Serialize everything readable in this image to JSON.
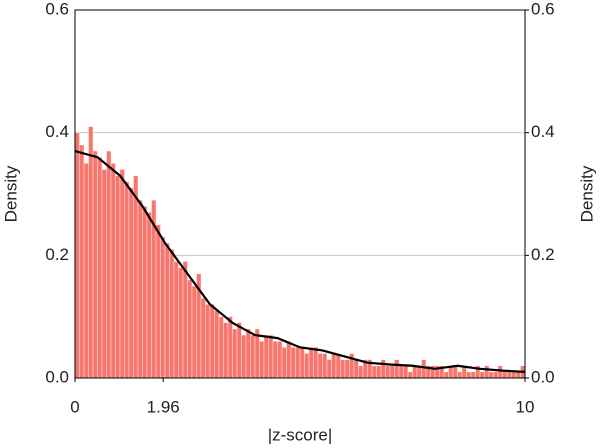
{
  "chart_data": {
    "type": "histogram",
    "x_label": "|z-score|",
    "y_label": "Density",
    "y2_label": "Density",
    "bins": [
      0,
      0.1,
      0.2,
      0.3,
      0.4,
      0.5,
      0.6,
      0.7,
      0.8,
      0.9,
      1,
      1.1,
      1.2,
      1.3,
      1.4,
      1.5,
      1.6,
      1.7,
      1.8,
      1.9,
      2,
      2.1,
      2.2,
      2.3,
      2.4,
      2.5,
      2.6,
      2.7,
      2.8,
      2.9,
      3,
      3.1,
      3.2,
      3.3,
      3.4,
      3.5,
      3.6,
      3.7,
      3.8,
      3.9,
      4,
      4.1,
      4.2,
      4.3,
      4.4,
      4.5,
      4.6,
      4.7,
      4.8,
      4.9,
      5,
      5.1,
      5.2,
      5.3,
      5.4,
      5.5,
      5.6,
      5.7,
      5.8,
      5.9,
      6,
      6.1,
      6.2,
      6.3,
      6.4,
      6.5,
      6.6,
      6.7,
      6.8,
      6.9,
      7,
      7.1,
      7.2,
      7.3,
      7.4,
      7.5,
      7.6,
      7.7,
      7.8,
      7.9,
      8,
      8.1,
      8.2,
      8.3,
      8.4,
      8.5,
      8.6,
      8.7,
      8.8,
      8.9,
      9,
      9.1,
      9.2,
      9.3,
      9.4,
      9.5,
      9.6,
      9.7,
      9.8,
      9.9,
      10
    ],
    "counts": [
      0.4,
      0.38,
      0.35,
      0.41,
      0.37,
      0.36,
      0.34,
      0.37,
      0.35,
      0.33,
      0.34,
      0.32,
      0.31,
      0.33,
      0.29,
      0.28,
      0.27,
      0.29,
      0.25,
      0.23,
      0.22,
      0.21,
      0.19,
      0.18,
      0.19,
      0.16,
      0.15,
      0.17,
      0.13,
      0.12,
      0.12,
      0.11,
      0.1,
      0.09,
      0.1,
      0.08,
      0.09,
      0.07,
      0.08,
      0.07,
      0.08,
      0.06,
      0.07,
      0.07,
      0.06,
      0.06,
      0.05,
      0.06,
      0.05,
      0.05,
      0.05,
      0.04,
      0.05,
      0.05,
      0.04,
      0.04,
      0.03,
      0.04,
      0.04,
      0.03,
      0.03,
      0.04,
      0.03,
      0.02,
      0.03,
      0.03,
      0.02,
      0.02,
      0.03,
      0.02,
      0.02,
      0.03,
      0.02,
      0.02,
      0.01,
      0.02,
      0.02,
      0.03,
      0.02,
      0.02,
      0.02,
      0.02,
      0.01,
      0.02,
      0.02,
      0.01,
      0.02,
      0.01,
      0.01,
      0.02,
      0.01,
      0.02,
      0.01,
      0.01,
      0.02,
      0.01,
      0.01,
      0.01,
      0.01,
      0.02
    ],
    "color": "#f8766d",
    "density": {
      "type": "line",
      "color": "#000000",
      "x": [
        0,
        0.5,
        1,
        1.5,
        2,
        2.5,
        3,
        3.5,
        4,
        4.5,
        5,
        5.5,
        6,
        6.5,
        7,
        7.5,
        8,
        8.5,
        9,
        9.5,
        10
      ],
      "y": [
        0.37,
        0.36,
        0.33,
        0.28,
        0.22,
        0.17,
        0.12,
        0.09,
        0.07,
        0.065,
        0.05,
        0.045,
        0.035,
        0.025,
        0.022,
        0.02,
        0.015,
        0.02,
        0.015,
        0.012,
        0.01
      ]
    },
    "xlim": [
      0,
      10
    ],
    "xticks": [
      0,
      1.96,
      10
    ],
    "ylim": [
      0,
      0.6
    ],
    "yticks": [
      {
        "value": 0,
        "label": "0.0"
      },
      0.2,
      0.4,
      0.6
    ],
    "y2lim": [
      0,
      0.6
    ],
    "y2ticks": [
      {
        "value": 0,
        "label": "0.0"
      },
      0.2,
      0.4,
      0.6
    ],
    "grid": true
  }
}
